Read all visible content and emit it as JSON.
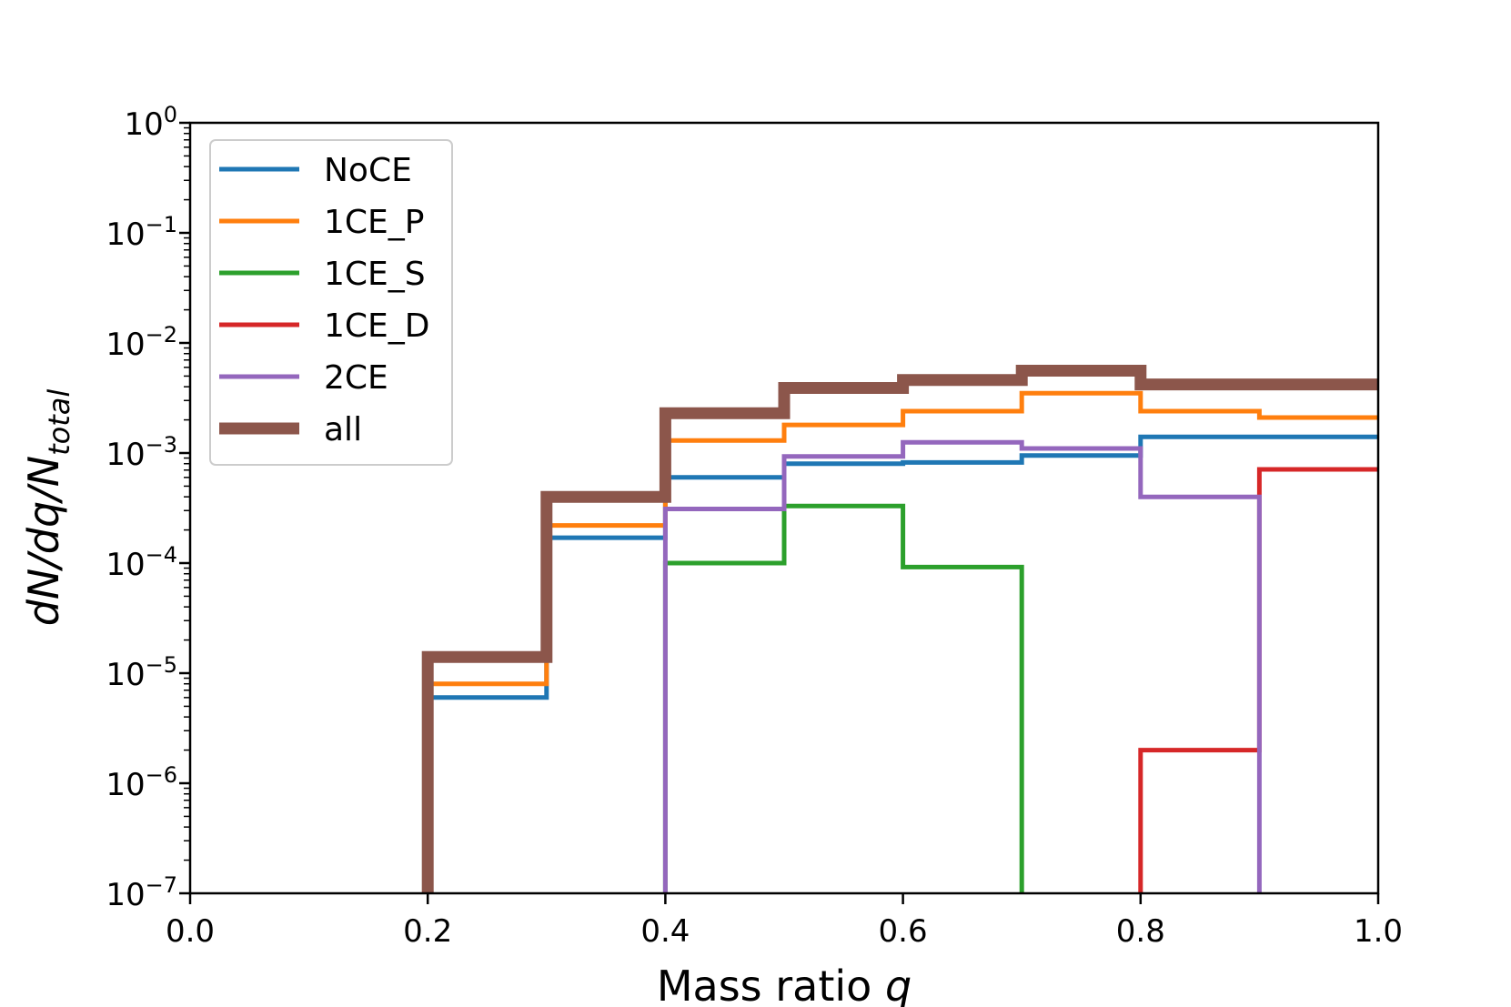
{
  "chart_data": {
    "type": "step",
    "xlabel": "Mass ratio",
    "xlabel_var": "q",
    "ylabel": "dN/dq/N",
    "ylabel_sub": "total",
    "xlim": [
      0.0,
      1.0
    ],
    "ylim_exp": [
      -7,
      0
    ],
    "yscale": "log",
    "x_ticks": [
      "0.0",
      "0.2",
      "0.4",
      "0.6",
      "0.8",
      "1.0"
    ],
    "y_tick_base": "10",
    "y_tick_exps": [
      "0",
      "−1",
      "−2",
      "−3",
      "−4",
      "−5",
      "−6",
      "−7"
    ],
    "bin_edges": [
      0.0,
      0.1,
      0.2,
      0.3,
      0.4,
      0.5,
      0.6,
      0.7,
      0.8,
      0.9,
      1.0
    ],
    "legend_position": "upper-left",
    "series": [
      {
        "name": "NoCE",
        "color": "#1f77b4",
        "values": [
          0,
          0,
          6e-06,
          0.00017,
          0.0006,
          0.0008,
          0.00082,
          0.00095,
          0.0014,
          0.0014
        ]
      },
      {
        "name": "1CE_P",
        "color": "#ff7f0e",
        "values": [
          0,
          0,
          8e-06,
          0.00022,
          0.0013,
          0.0018,
          0.0024,
          0.0035,
          0.0024,
          0.0021
        ]
      },
      {
        "name": "1CE_S",
        "color": "#2ca02c",
        "values": [
          0,
          0,
          0,
          0,
          0.0001,
          0.00033,
          9.2e-05,
          0,
          0,
          0
        ]
      },
      {
        "name": "1CE_D",
        "color": "#d62728",
        "values": [
          0,
          0,
          0,
          0,
          0,
          0,
          0,
          0,
          2e-06,
          0.00071
        ]
      },
      {
        "name": "2CE",
        "color": "#9467bd",
        "values": [
          0,
          0,
          0,
          0,
          0.00031,
          0.00093,
          0.00125,
          0.0011,
          0.0004,
          0
        ]
      },
      {
        "name": "all",
        "color": "#8c564b",
        "values": [
          0,
          0,
          1.4e-05,
          0.0004,
          0.0023,
          0.0039,
          0.0046,
          0.0056,
          0.0042,
          0.0042
        ]
      }
    ]
  }
}
